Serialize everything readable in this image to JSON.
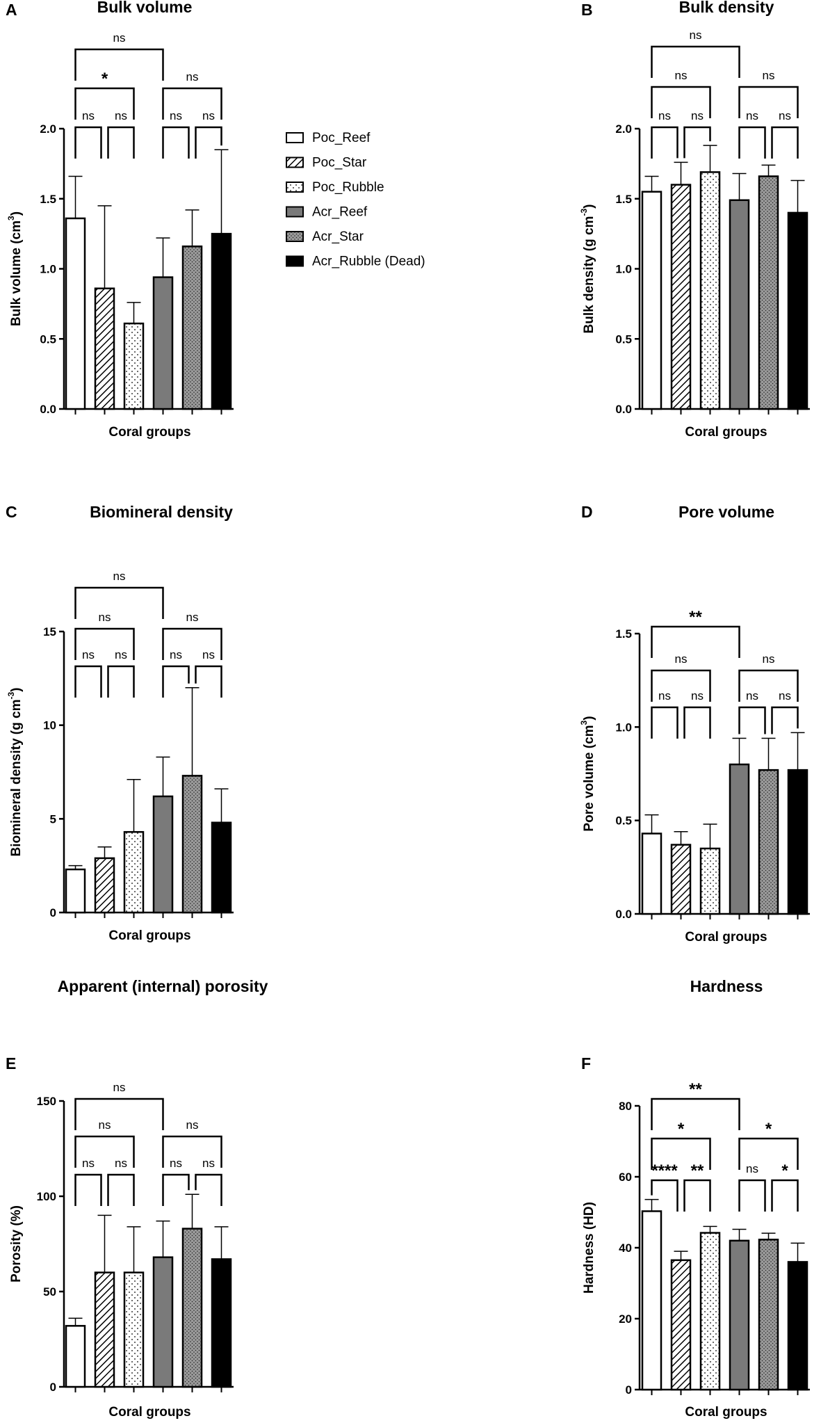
{
  "legend": {
    "placement": "top-center",
    "entries": [
      "Poc_Reef",
      "Poc_Star",
      "Poc_Rubble",
      "Acr_Reef",
      "Acr_Star",
      "Acr_Rubble (Dead)"
    ]
  },
  "groups": [
    {
      "name": "Poc_Reef",
      "fill": "#ffffff",
      "pattern": "none"
    },
    {
      "name": "Poc_Star",
      "fill": "#ffffff",
      "pattern": "diagonal-hatch"
    },
    {
      "name": "Poc_Rubble",
      "fill": "#ffffff",
      "pattern": "sparse-dots"
    },
    {
      "name": "Acr_Reef",
      "fill": "#7a7a7a",
      "pattern": "none"
    },
    {
      "name": "Acr_Star",
      "fill": "#9a9a9a",
      "pattern": "dense-dots"
    },
    {
      "name": "Acr_Rubble (Dead)",
      "fill": "#000000",
      "pattern": "none"
    }
  ],
  "chart_data": [
    {
      "panel": "A",
      "type": "bar",
      "title": "Bulk volume",
      "xlabel": "Coral groups",
      "ylabel_main": "Bulk volume (cm",
      "ylabel_sup": "3",
      "ylabel_tail": ")",
      "ylim": [
        0,
        2.0
      ],
      "ticks": [
        0.0,
        0.5,
        1.0,
        1.5,
        2.0
      ],
      "tick_labels": [
        "0.0",
        "0.5",
        "1.0",
        "1.5",
        "2.0"
      ],
      "values": [
        1.36,
        0.86,
        0.61,
        0.94,
        1.16,
        1.25
      ],
      "errors": [
        0.3,
        0.59,
        0.15,
        0.28,
        0.26,
        0.6
      ],
      "comparisons": [
        {
          "from": 0,
          "to": 1,
          "label": "ns"
        },
        {
          "from": 1,
          "to": 2,
          "label": "ns"
        },
        {
          "from": 3,
          "to": 4,
          "label": "ns"
        },
        {
          "from": 4,
          "to": 5,
          "label": "ns"
        },
        {
          "from": 0,
          "to": 2,
          "label": "*"
        },
        {
          "from": 3,
          "to": 5,
          "label": "ns"
        },
        {
          "from": 0,
          "to": 3,
          "label": "ns"
        }
      ]
    },
    {
      "panel": "B",
      "type": "bar",
      "title": "Bulk density",
      "xlabel": "Coral groups",
      "ylabel_main": "Bulk density (g cm",
      "ylabel_sup": "-3",
      "ylabel_tail": ")",
      "ylim": [
        0,
        2.0
      ],
      "ticks": [
        0.0,
        0.5,
        1.0,
        1.5,
        2.0
      ],
      "tick_labels": [
        "0.0",
        "0.5",
        "1.0",
        "1.5",
        "2.0"
      ],
      "values": [
        1.55,
        1.6,
        1.69,
        1.49,
        1.66,
        1.4
      ],
      "errors": [
        0.11,
        0.16,
        0.19,
        0.19,
        0.08,
        0.23
      ],
      "comparisons": [
        {
          "from": 0,
          "to": 1,
          "label": "ns"
        },
        {
          "from": 1,
          "to": 2,
          "label": "ns"
        },
        {
          "from": 3,
          "to": 4,
          "label": "ns"
        },
        {
          "from": 4,
          "to": 5,
          "label": "ns"
        },
        {
          "from": 0,
          "to": 2,
          "label": "ns"
        },
        {
          "from": 3,
          "to": 5,
          "label": "ns"
        },
        {
          "from": 0,
          "to": 3,
          "label": "ns"
        }
      ]
    },
    {
      "panel": "C",
      "type": "bar",
      "title": "Biomineral density",
      "xlabel": "Coral groups",
      "ylabel_main": "Biomineral density (g cm",
      "ylabel_sup": "-3",
      "ylabel_tail": ")",
      "ylim": [
        0,
        15
      ],
      "ticks": [
        0,
        5,
        10,
        15
      ],
      "tick_labels": [
        "0",
        "5",
        "10",
        "15"
      ],
      "values": [
        2.3,
        2.9,
        4.3,
        6.2,
        7.3,
        4.8
      ],
      "errors": [
        0.2,
        0.6,
        2.8,
        2.1,
        4.7,
        1.8
      ],
      "comparisons": [
        {
          "from": 0,
          "to": 1,
          "label": "ns"
        },
        {
          "from": 1,
          "to": 2,
          "label": "ns"
        },
        {
          "from": 3,
          "to": 4,
          "label": "ns"
        },
        {
          "from": 4,
          "to": 5,
          "label": "ns"
        },
        {
          "from": 0,
          "to": 2,
          "label": "ns"
        },
        {
          "from": 3,
          "to": 5,
          "label": "ns"
        },
        {
          "from": 0,
          "to": 3,
          "label": "ns"
        }
      ]
    },
    {
      "panel": "D",
      "type": "bar",
      "title": "Pore volume",
      "xlabel": "Coral groups",
      "ylabel_main": "Pore volume (cm",
      "ylabel_sup": "3",
      "ylabel_tail": ")",
      "ylim": [
        0,
        1.5
      ],
      "ticks": [
        0.0,
        0.5,
        1.0,
        1.5
      ],
      "tick_labels": [
        "0.0",
        "0.5",
        "1.0",
        "1.5"
      ],
      "values": [
        0.43,
        0.37,
        0.35,
        0.8,
        0.77,
        0.77
      ],
      "errors": [
        0.1,
        0.07,
        0.13,
        0.14,
        0.17,
        0.2
      ],
      "comparisons": [
        {
          "from": 0,
          "to": 1,
          "label": "ns"
        },
        {
          "from": 1,
          "to": 2,
          "label": "ns"
        },
        {
          "from": 3,
          "to": 4,
          "label": "ns"
        },
        {
          "from": 4,
          "to": 5,
          "label": "ns"
        },
        {
          "from": 0,
          "to": 2,
          "label": "ns"
        },
        {
          "from": 3,
          "to": 5,
          "label": "ns"
        },
        {
          "from": 0,
          "to": 3,
          "label": "**"
        }
      ]
    },
    {
      "panel": "E",
      "type": "bar",
      "title": "Apparent (internal) porosity",
      "xlabel": "Coral groups",
      "ylabel_main": "Porosity (%)",
      "ylabel_sup": "",
      "ylabel_tail": "",
      "ylim": [
        0,
        150
      ],
      "ticks": [
        0,
        50,
        100,
        150
      ],
      "tick_labels": [
        "0",
        "50",
        "100",
        "150"
      ],
      "values": [
        32,
        60,
        60,
        68,
        83,
        67
      ],
      "errors": [
        4,
        30,
        24,
        19,
        18,
        17
      ],
      "comparisons": [
        {
          "from": 0,
          "to": 1,
          "label": "ns"
        },
        {
          "from": 1,
          "to": 2,
          "label": "ns"
        },
        {
          "from": 3,
          "to": 4,
          "label": "ns"
        },
        {
          "from": 4,
          "to": 5,
          "label": "ns"
        },
        {
          "from": 0,
          "to": 2,
          "label": "ns"
        },
        {
          "from": 3,
          "to": 5,
          "label": "ns"
        },
        {
          "from": 0,
          "to": 3,
          "label": "ns"
        }
      ]
    },
    {
      "panel": "F",
      "type": "bar",
      "title": "Hardness",
      "xlabel": "Coral groups",
      "ylabel_main": "Hardness (HD)",
      "ylabel_sup": "",
      "ylabel_tail": "",
      "ylim": [
        0,
        80
      ],
      "ticks": [
        0,
        20,
        40,
        60,
        80
      ],
      "tick_labels": [
        "0",
        "20",
        "40",
        "60",
        "80"
      ],
      "values": [
        50.3,
        36.5,
        44.2,
        42.0,
        42.3,
        36.0
      ],
      "errors": [
        3.3,
        2.5,
        1.8,
        3.2,
        1.8,
        5.3
      ],
      "comparisons": [
        {
          "from": 0,
          "to": 1,
          "label": "****"
        },
        {
          "from": 1,
          "to": 2,
          "label": "**"
        },
        {
          "from": 3,
          "to": 4,
          "label": "ns"
        },
        {
          "from": 4,
          "to": 5,
          "label": "*"
        },
        {
          "from": 0,
          "to": 2,
          "label": "*"
        },
        {
          "from": 3,
          "to": 5,
          "label": "*"
        },
        {
          "from": 0,
          "to": 3,
          "label": "**"
        }
      ]
    }
  ]
}
